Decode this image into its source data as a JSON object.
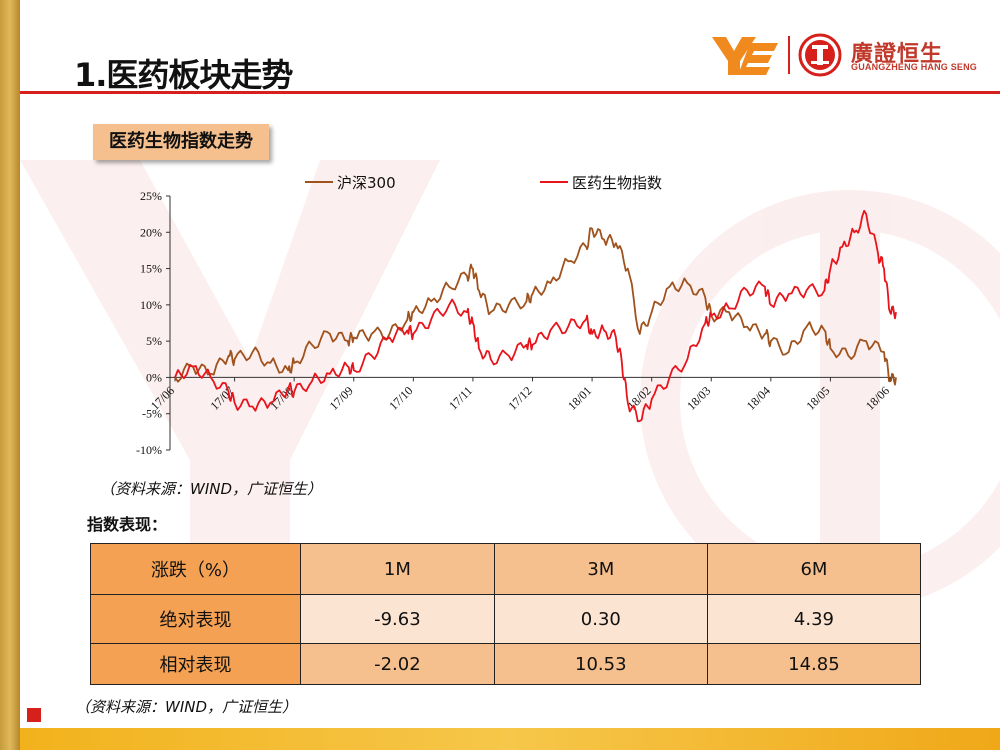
{
  "title": "1.医药板块走势",
  "logo": {
    "cn": "廣證恒生",
    "en": "GUANGZHENG HANG SENG",
    "brand_color": "#d6201c",
    "ye_color": "#f08a1e"
  },
  "section_label": "医药生物指数走势",
  "source_note": "（资料来源：WIND，广证恒生）",
  "performance": {
    "heading": "指数表现：",
    "columns": [
      "涨跌（%）",
      "1M",
      "3M",
      "6M"
    ],
    "rows": [
      {
        "label": "绝对表现",
        "values": [
          "-9.63",
          "0.30",
          "4.39"
        ]
      },
      {
        "label": "相对表现",
        "values": [
          "-2.02",
          "10.53",
          "14.85"
        ]
      }
    ]
  },
  "chart_data": {
    "type": "line",
    "title": "",
    "xlabel": "",
    "ylabel": "",
    "ylim": [
      -10,
      25
    ],
    "yticks": [
      "-10%",
      "-5%",
      "0%",
      "5%",
      "10%",
      "15%",
      "20%",
      "25%"
    ],
    "ytick_values": [
      -10,
      -5,
      0,
      5,
      10,
      15,
      20,
      25
    ],
    "categories": [
      "17/06",
      "17/07",
      "17/08",
      "17/09",
      "17/10",
      "17/11",
      "17/12",
      "18/01",
      "18/02",
      "18/03",
      "18/04",
      "18/05",
      "18/06"
    ],
    "legend_placement": "top",
    "grid": false,
    "series": [
      {
        "name": "沪深300",
        "color": "#a0521d",
        "x": [
          0,
          0.3,
          0.6,
          0.9,
          1.0,
          1.3,
          1.6,
          1.9,
          2.0,
          2.3,
          2.6,
          2.9,
          3.0,
          3.3,
          3.6,
          3.9,
          4.0,
          4.3,
          4.6,
          4.9,
          5.0,
          5.1,
          5.3,
          5.6,
          5.9,
          6.0,
          6.3,
          6.6,
          6.9,
          7.0,
          7.2,
          7.4,
          7.6,
          7.8,
          8.0,
          8.3,
          8.6,
          8.9,
          9.0,
          9.3,
          9.6,
          9.9,
          10.0,
          10.3,
          10.6,
          10.9,
          11.0,
          11.3,
          11.6,
          11.9,
          12.0,
          12.1
        ],
        "values": [
          0,
          1.5,
          0.5,
          3.0,
          2.5,
          3.5,
          2.0,
          1.0,
          2.0,
          4.5,
          6.0,
          5.0,
          5.5,
          6.0,
          6.0,
          8.0,
          9.0,
          10.5,
          12.5,
          14.0,
          15.0,
          12.0,
          9.0,
          10.0,
          10.5,
          11.5,
          13.0,
          16.0,
          18.0,
          20.5,
          19.0,
          18.5,
          15.0,
          6.0,
          9.0,
          12.5,
          13.0,
          11.0,
          8.5,
          9.0,
          7.0,
          6.0,
          5.0,
          3.5,
          7.0,
          6.5,
          4.0,
          3.0,
          5.0,
          3.5,
          -0.5,
          0.0
        ]
      },
      {
        "name": "医药生物指数",
        "color": "#e8141c",
        "x": [
          0,
          0.3,
          0.6,
          0.9,
          1.0,
          1.3,
          1.6,
          1.9,
          2.0,
          2.3,
          2.6,
          2.9,
          3.0,
          3.3,
          3.6,
          3.9,
          4.0,
          4.3,
          4.6,
          4.9,
          5.0,
          5.1,
          5.3,
          5.6,
          5.9,
          6.0,
          6.3,
          6.6,
          6.9,
          7.0,
          7.2,
          7.4,
          7.5,
          7.6,
          7.8,
          8.0,
          8.3,
          8.6,
          8.9,
          9.0,
          9.3,
          9.6,
          9.9,
          10.0,
          10.3,
          10.6,
          10.9,
          11.0,
          11.2,
          11.4,
          11.6,
          11.8,
          11.9,
          12.0,
          12.1
        ],
        "values": [
          0,
          1.5,
          0.0,
          -2.0,
          -3.5,
          -4.0,
          -3.5,
          -1.5,
          -2.0,
          -0.5,
          0.5,
          1.5,
          1.0,
          3.0,
          5.5,
          6.5,
          6.0,
          8.0,
          10.0,
          9.0,
          7.5,
          4.0,
          2.5,
          3.0,
          4.5,
          4.5,
          6.5,
          7.0,
          8.0,
          6.0,
          6.5,
          5.5,
          2.0,
          -3.5,
          -6.0,
          -3.0,
          0.0,
          2.5,
          7.5,
          8.5,
          9.5,
          12.0,
          12.5,
          10.0,
          11.5,
          12.0,
          12.0,
          15.0,
          18.0,
          20.0,
          22.5,
          17.0,
          15.0,
          9.0,
          9.0
        ]
      }
    ]
  }
}
